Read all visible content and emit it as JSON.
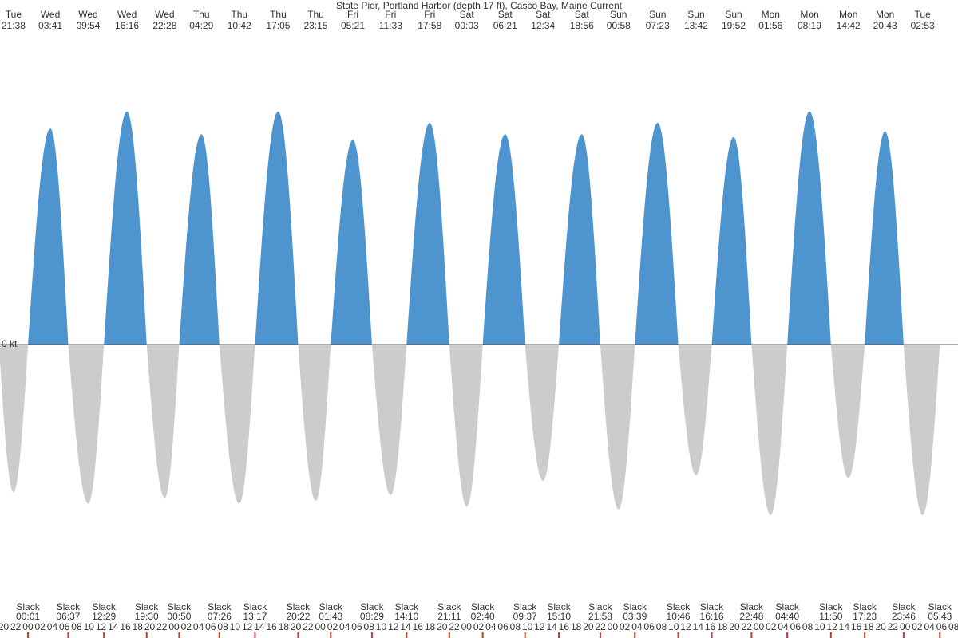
{
  "chart_data": {
    "type": "tidal-current",
    "title": "State Pier, Portland Harbor (depth 17 ft), Casco Bay, Maine Current",
    "ylim": [
      -0.9,
      1.1
    ],
    "yticks": [
      {
        "value": 0,
        "label": "0 kt"
      }
    ],
    "flood_color": "#4e94ce",
    "ebb_color": "#cccccc",
    "extrema": {
      "days": [
        "Tue",
        "Wed",
        "Wed",
        "Wed",
        "Wed",
        "Thu",
        "Thu",
        "Thu",
        "Thu",
        "Fri",
        "Fri",
        "Fri",
        "Sat",
        "Sat",
        "Sat",
        "Sat",
        "Sun",
        "Sun",
        "Sun",
        "Sun",
        "Mon",
        "Mon",
        "Mon",
        "Mon",
        "Tue"
      ],
      "times": [
        "21:38",
        "03:41",
        "09:54",
        "16:16",
        "22:28",
        "04:29",
        "10:42",
        "17:05",
        "23:15",
        "05:21",
        "11:33",
        "17:58",
        "00:03",
        "06:21",
        "12:34",
        "18:56",
        "00:58",
        "07:23",
        "13:42",
        "19:52",
        "01:56",
        "08:19",
        "14:42",
        "20:43",
        "02:53"
      ],
      "values": [
        -0.52,
        0.76,
        -0.56,
        0.82,
        -0.54,
        0.74,
        -0.56,
        0.82,
        -0.55,
        0.72,
        -0.53,
        0.78,
        -0.57,
        0.74,
        -0.48,
        0.74,
        -0.58,
        0.78,
        -0.46,
        0.73,
        -0.6,
        0.82,
        -0.47,
        0.75,
        -0.6
      ]
    },
    "slack_label": "Slack",
    "slack_times": [
      "00:01",
      "06:37",
      "12:29",
      "19:30",
      "00:50",
      "07:26",
      "13:17",
      "20:22",
      "01:43",
      "08:29",
      "14:10",
      "21:11",
      "02:40",
      "09:37",
      "15:10",
      "21:58",
      "03:39",
      "10:46",
      "16:16",
      "22:48",
      "04:40",
      "11:50",
      "17:23",
      "23:46",
      "05:43"
    ],
    "hour_ticks": [
      "20",
      "22",
      "00",
      "02",
      "04",
      "06",
      "08",
      "10",
      "12",
      "14",
      "16",
      "18",
      "20",
      "22",
      "00",
      "02",
      "04",
      "06",
      "08",
      "10",
      "12",
      "14",
      "16",
      "18",
      "20",
      "22",
      "00",
      "02",
      "04",
      "06",
      "08",
      "10",
      "12",
      "14",
      "16",
      "18",
      "20",
      "22",
      "00",
      "02",
      "04",
      "06",
      "08",
      "10",
      "12",
      "14",
      "16",
      "18",
      "20",
      "22",
      "00",
      "02",
      "04",
      "06",
      "08",
      "10",
      "12",
      "14",
      "16",
      "18",
      "20",
      "22",
      "00",
      "02",
      "04",
      "06",
      "08",
      "10",
      "12",
      "14",
      "16",
      "18",
      "20",
      "22",
      "00",
      "02",
      "04",
      "06",
      "08"
    ]
  }
}
